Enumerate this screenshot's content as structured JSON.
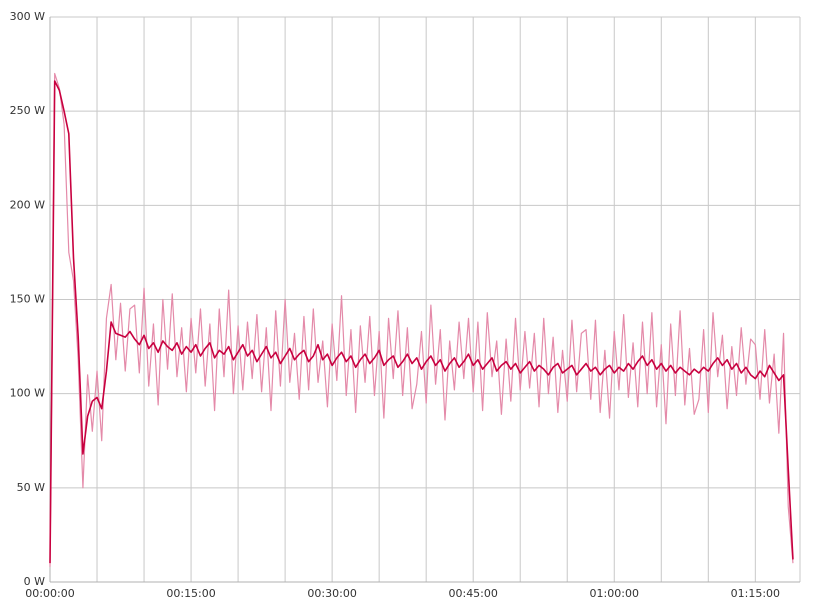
{
  "chart_data": {
    "type": "line",
    "x": [
      0,
      30,
      60,
      90,
      120,
      150,
      180,
      210,
      240,
      270,
      300,
      330,
      360,
      390,
      420,
      450,
      480,
      510,
      540,
      570,
      600,
      630,
      660,
      690,
      720,
      750,
      780,
      810,
      840,
      870,
      900,
      930,
      960,
      990,
      1020,
      1050,
      1080,
      1110,
      1140,
      1170,
      1200,
      1230,
      1260,
      1290,
      1320,
      1350,
      1380,
      1410,
      1440,
      1470,
      1500,
      1530,
      1560,
      1590,
      1620,
      1650,
      1680,
      1710,
      1740,
      1770,
      1800,
      1830,
      1860,
      1890,
      1920,
      1950,
      1980,
      2010,
      2040,
      2070,
      2100,
      2130,
      2160,
      2190,
      2220,
      2250,
      2280,
      2310,
      2340,
      2370,
      2400,
      2430,
      2460,
      2490,
      2520,
      2550,
      2580,
      2610,
      2640,
      2670,
      2700,
      2730,
      2760,
      2790,
      2820,
      2850,
      2880,
      2910,
      2940,
      2970,
      3000,
      3030,
      3060,
      3090,
      3120,
      3150,
      3180,
      3210,
      3240,
      3270,
      3300,
      3330,
      3360,
      3390,
      3420,
      3450,
      3480,
      3510,
      3540,
      3570,
      3600,
      3630,
      3660,
      3690,
      3720,
      3750,
      3780,
      3810,
      3840,
      3870,
      3900,
      3930,
      3960,
      3990,
      4020,
      4050,
      4080,
      4110,
      4140,
      4170,
      4200,
      4230,
      4260,
      4290,
      4320,
      4350,
      4380,
      4410,
      4440,
      4470,
      4500,
      4530,
      4560,
      4590,
      4620,
      4650,
      4680,
      4710,
      4740
    ],
    "series": [
      {
        "color": "#e48aa9",
        "values": [
          8,
          270,
          262,
          243,
          175,
          160,
          118,
          50,
          110,
          80,
          112,
          75,
          140,
          158,
          118,
          148,
          112,
          145,
          147,
          111,
          156,
          104,
          137,
          94,
          150,
          113,
          153,
          109,
          135,
          101,
          140,
          111,
          145,
          104,
          137,
          91,
          145,
          109,
          155,
          100,
          136,
          102,
          138,
          108,
          142,
          101,
          135,
          91,
          144,
          104,
          150,
          106,
          132,
          97,
          141,
          102,
          145,
          106,
          128,
          93,
          137,
          107,
          152,
          99,
          134,
          90,
          136,
          106,
          141,
          99,
          133,
          87,
          140,
          108,
          144,
          99,
          135,
          92,
          105,
          133,
          95,
          147,
          105,
          134,
          86,
          128,
          102,
          138,
          108,
          140,
          101,
          138,
          91,
          143,
          109,
          128,
          89,
          129,
          96,
          140,
          102,
          133,
          103,
          132,
          93,
          140,
          100,
          130,
          90,
          123,
          96,
          139,
          101,
          132,
          134,
          97,
          139,
          90,
          123,
          87,
          133,
          102,
          142,
          98,
          127,
          93,
          138,
          100,
          143,
          93,
          126,
          84,
          137,
          99,
          144,
          94,
          124,
          89,
          97,
          134,
          90,
          143,
          109,
          131,
          92,
          125,
          99,
          135,
          105,
          129,
          126,
          97,
          134,
          95,
          121,
          79,
          132,
          40,
          10
        ]
      },
      {
        "color": "#c8003f",
        "values": [
          10,
          266,
          261,
          250,
          238,
          172,
          130,
          68,
          88,
          96,
          98,
          92,
          112,
          138,
          132,
          131,
          130,
          133,
          129,
          126,
          131,
          124,
          127,
          122,
          128,
          125,
          123,
          127,
          121,
          125,
          122,
          126,
          120,
          124,
          127,
          119,
          123,
          121,
          125,
          118,
          122,
          126,
          120,
          123,
          117,
          121,
          125,
          119,
          122,
          116,
          120,
          124,
          118,
          121,
          123,
          117,
          120,
          126,
          118,
          121,
          115,
          119,
          122,
          117,
          120,
          114,
          118,
          121,
          116,
          119,
          123,
          115,
          118,
          120,
          114,
          117,
          121,
          116,
          119,
          113,
          117,
          120,
          115,
          118,
          112,
          116,
          119,
          114,
          117,
          121,
          115,
          118,
          113,
          116,
          119,
          112,
          115,
          117,
          113,
          116,
          111,
          114,
          117,
          112,
          115,
          113,
          110,
          114,
          116,
          111,
          113,
          115,
          110,
          113,
          116,
          112,
          114,
          110,
          113,
          115,
          111,
          114,
          112,
          116,
          113,
          117,
          120,
          115,
          118,
          113,
          116,
          112,
          115,
          111,
          114,
          112,
          110,
          113,
          111,
          114,
          112,
          116,
          119,
          115,
          118,
          113,
          116,
          111,
          114,
          110,
          108,
          112,
          109,
          115,
          111,
          107,
          110,
          60,
          12
        ]
      }
    ],
    "xlim": [
      0,
      4785
    ],
    "xticks": [
      {
        "value": 0,
        "label": "00:00:00"
      },
      {
        "value": 900,
        "label": "00:15:00"
      },
      {
        "value": 1800,
        "label": "00:30:00"
      },
      {
        "value": 2700,
        "label": "00:45:00"
      },
      {
        "value": 3600,
        "label": "01:00:00"
      },
      {
        "value": 4500,
        "label": "01:15:00"
      }
    ],
    "xgrid": [
      300,
      600,
      1200,
      1500,
      2100,
      2400,
      3000,
      3300,
      3900,
      4200
    ],
    "ylim": [
      0,
      300
    ],
    "yticks": [
      {
        "value": 0,
        "label": "0 W"
      },
      {
        "value": 50,
        "label": "50 W"
      },
      {
        "value": 100,
        "label": "100 W"
      },
      {
        "value": 150,
        "label": "150 W"
      },
      {
        "value": 200,
        "label": "200 W"
      },
      {
        "value": 250,
        "label": "250 W"
      },
      {
        "value": 300,
        "label": "300 W"
      }
    ],
    "grid": true
  }
}
